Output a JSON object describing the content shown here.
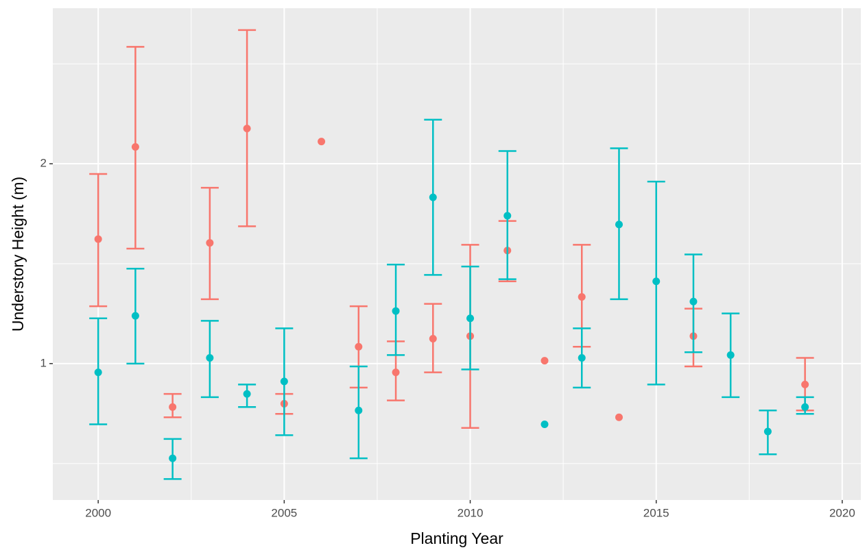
{
  "chart_data": {
    "type": "errorbar",
    "xlabel": "Planting Year",
    "ylabel": "Understory Height (m)",
    "xlim": [
      1998.78,
      2020.5
    ],
    "xticks": [
      2000,
      2005,
      2010,
      2015,
      2020
    ],
    "xminor": [
      2002.5,
      2007.5,
      2012.5,
      2017.5
    ],
    "ylim": [
      0.623,
      3.43
    ],
    "yticks": [
      1,
      2
    ],
    "yminor": [
      0.707,
      1.414,
      2.828
    ],
    "ylog": true,
    "grid": true,
    "series": [
      {
        "color": "#F8766D",
        "x": [
          2000,
          2001,
          2002,
          2003,
          2004,
          2005,
          2006,
          2007,
          2008,
          2009,
          2010,
          2011,
          2012,
          2013,
          2014,
          2016,
          2019
        ],
        "values": [
          1.54,
          2.12,
          0.86,
          1.52,
          2.26,
          0.87,
          2.16,
          1.06,
          0.97,
          1.09,
          1.1,
          1.48,
          1.01,
          1.26,
          0.83,
          1.1,
          0.93
        ],
        "lower": [
          1.22,
          1.49,
          0.83,
          1.25,
          1.61,
          0.84,
          null,
          0.92,
          0.88,
          0.97,
          0.8,
          1.33,
          null,
          1.06,
          null,
          0.99,
          0.85
        ],
        "upper": [
          1.93,
          3.0,
          0.9,
          1.84,
          3.18,
          0.9,
          null,
          1.22,
          1.08,
          1.23,
          1.51,
          1.64,
          null,
          1.51,
          null,
          1.21,
          1.02
        ]
      },
      {
        "color": "#00BFC4",
        "x": [
          2000,
          2001,
          2002,
          2003,
          2004,
          2005,
          2007,
          2008,
          2009,
          2010,
          2011,
          2012,
          2013,
          2014,
          2015,
          2016,
          2017,
          2018,
          2019
        ],
        "values": [
          0.97,
          1.18,
          0.72,
          1.02,
          0.9,
          0.94,
          0.85,
          1.2,
          1.78,
          1.17,
          1.67,
          0.81,
          1.02,
          1.62,
          1.33,
          1.24,
          1.03,
          0.79,
          0.86
        ],
        "lower": [
          0.81,
          1.0,
          0.67,
          0.89,
          0.86,
          0.78,
          0.72,
          1.03,
          1.36,
          0.98,
          1.34,
          null,
          0.92,
          1.25,
          0.93,
          1.04,
          0.89,
          0.73,
          0.84
        ],
        "upper": [
          1.17,
          1.39,
          0.77,
          1.16,
          0.93,
          1.13,
          0.99,
          1.41,
          2.33,
          1.4,
          2.09,
          null,
          1.13,
          2.11,
          1.88,
          1.46,
          1.19,
          0.85,
          0.89
        ]
      }
    ]
  }
}
